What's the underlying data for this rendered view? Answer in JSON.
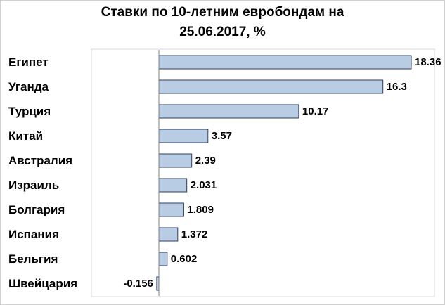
{
  "chart_data": {
    "type": "bar",
    "orientation": "horizontal",
    "title": [
      "Ставки по 10-летним евробондам на",
      "25.06.2017, %"
    ],
    "categories": [
      "Египет",
      "Уганда",
      "Турция",
      "Китай",
      "Австралия",
      "Израиль",
      "Болгария",
      "Испания",
      "Бельгия",
      "Швейцария"
    ],
    "values": [
      18.36,
      16.3,
      10.17,
      3.57,
      2.39,
      2.031,
      1.809,
      1.372,
      0.602,
      -0.156
    ],
    "value_labels": [
      "18.36",
      "16.3",
      "10.17",
      "3.57",
      "2.39",
      "2.031",
      "1.809",
      "1.372",
      "0.602",
      "-0.156"
    ],
    "xlim": [
      -5,
      18.36
    ],
    "grid": false,
    "legend": "none",
    "bar_color": "#b8cce4",
    "bar_stroke": "#2f3f5f"
  }
}
